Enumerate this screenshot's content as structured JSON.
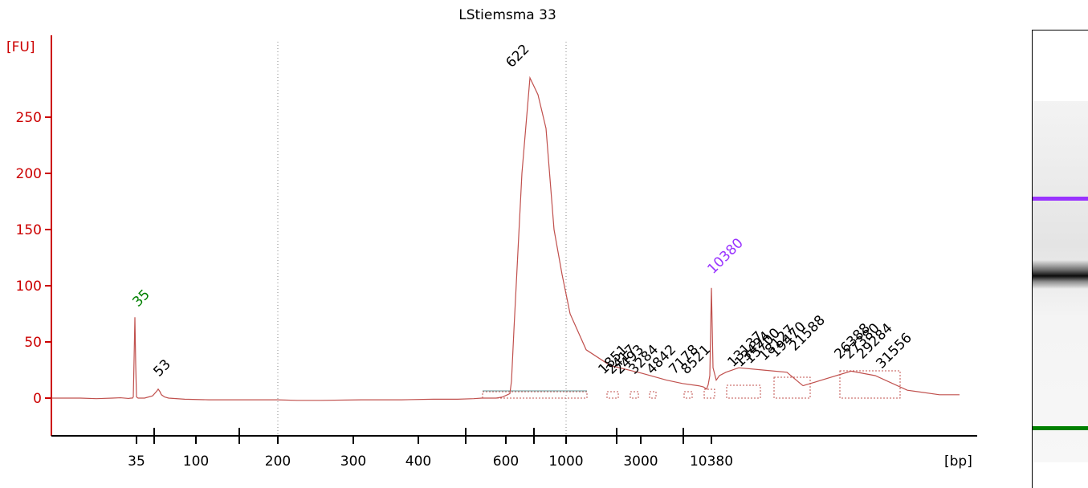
{
  "colors": {
    "trace": "#c0504d",
    "axis": "#cc0000",
    "lower_marker": "#008000",
    "upper_marker": "#9933ff",
    "baseline_segment": "#7fa7a7",
    "gridline": "#888888"
  },
  "chart_data": {
    "type": "line",
    "title": "LStiemsma 33",
    "ylabel": "[FU]",
    "xlabel": "[bp]",
    "ylim": [
      -32,
      320
    ],
    "yticks": [
      0,
      50,
      100,
      150,
      200,
      250
    ],
    "xticks": [
      "35",
      "100",
      "200",
      "300",
      "400",
      "600",
      "1000",
      "3000",
      "10380"
    ],
    "gridlines_at": [
      "200",
      "1000"
    ],
    "series": [
      {
        "x": [
          15,
          18,
          21,
          22,
          22.5,
          23,
          23.5,
          25,
          28,
          28.5,
          29,
          29.5,
          30,
          31.5,
          35,
          37,
          41,
          43,
          47,
          49,
          53,
          54,
          58,
          62,
          62.5,
          63,
          63.5,
          64,
          65,
          66,
          67,
          67.5,
          68,
          68.5,
          70,
          76,
          84,
          95,
          106,
          112,
          116,
          117,
          120,
          125,
          129,
          131,
          132,
          136,
          138,
          141,
          146,
          149,
          151,
          153,
          155,
          157,
          160,
          161,
          164,
          166,
          167,
          170,
          174,
          175,
          176,
          177,
          178,
          179,
          180,
          181
        ],
        "y": [
          0,
          0,
          -0.5,
          0,
          0.3,
          -0.3,
          0,
          0,
          1,
          35,
          72,
          30,
          1,
          0,
          0,
          2,
          6,
          8,
          6,
          3,
          1,
          0,
          -1,
          -1.5,
          -1.5,
          -1.5,
          -1.5,
          -2,
          -2,
          -1.5,
          -1.5,
          -1,
          -1,
          -0.5,
          0,
          0,
          0,
          0,
          1,
          3,
          4,
          15,
          60,
          200,
          285,
          270,
          240,
          150,
          110,
          75,
          43,
          29,
          22,
          16,
          13,
          11,
          10,
          9,
          8,
          12,
          20,
          98,
          27,
          16,
          20,
          23,
          27,
          25,
          23,
          11
        ]
      }
    ],
    "markers": {
      "lower": "35",
      "upper": "10380"
    },
    "peaks": [
      {
        "label": "35",
        "x": 30,
        "y": 72,
        "color": "lower"
      },
      {
        "label": "53",
        "x": 43,
        "y": 8
      },
      {
        "label": "622",
        "x": 129,
        "y": 285
      },
      {
        "label": "10380",
        "x": 168,
        "y": 98,
        "color": "upper"
      },
      {
        "label": "1851",
        "x": 145,
        "y": 9
      },
      {
        "label": "2417",
        "x": 148,
        "y": 9
      },
      {
        "label": "2493",
        "x": 149,
        "y": 9
      },
      {
        "label": "3284",
        "x": 151,
        "y": 9
      },
      {
        "label": "4842",
        "x": 154,
        "y": 9
      },
      {
        "label": "7178",
        "x": 159,
        "y": 9
      },
      {
        "label": "8521",
        "x": 161,
        "y": 9
      },
      {
        "label": "13137",
        "x": 171,
        "y": 17
      },
      {
        "label": "13424",
        "x": 172,
        "y": 17
      },
      {
        "label": "15700",
        "x": 174,
        "y": 18
      },
      {
        "label": "18127",
        "x": 176,
        "y": 19
      },
      {
        "label": "19470",
        "x": 177,
        "y": 20
      },
      {
        "label": "21588",
        "x": 179,
        "y": 22
      },
      {
        "label": "26388",
        "x": 183,
        "y": 25
      },
      {
        "label": "27380",
        "x": 184,
        "y": 25
      },
      {
        "label": "29284",
        "x": 185,
        "y": 25
      },
      {
        "label": "31556",
        "x": 188,
        "y": 20
      }
    ]
  }
}
